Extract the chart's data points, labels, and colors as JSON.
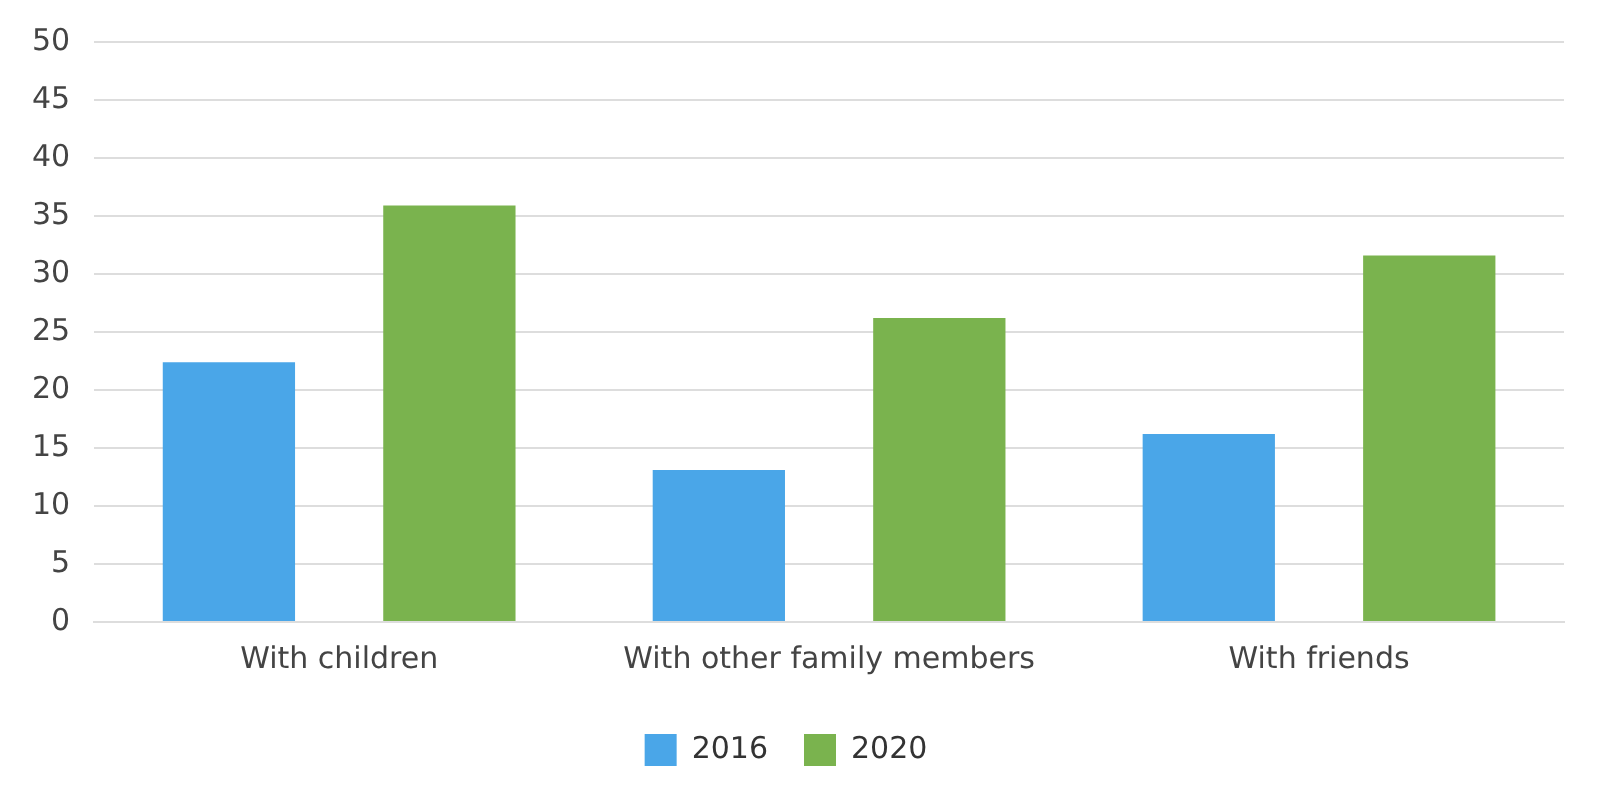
{
  "chart_data": {
    "type": "bar",
    "categories": [
      "With children",
      "With other family members",
      "With friends"
    ],
    "series": [
      {
        "name": "2016",
        "color": "#4aa6e8",
        "values": [
          22.4,
          13.1,
          16.2
        ]
      },
      {
        "name": "2020",
        "color": "#7ab34e",
        "values": [
          35.9,
          26.2,
          31.6
        ]
      }
    ],
    "ylim": [
      0,
      50
    ],
    "yticks": [
      0,
      5,
      10,
      15,
      20,
      25,
      30,
      35,
      40,
      45,
      50
    ],
    "grid": "y",
    "legend": "bottom"
  }
}
